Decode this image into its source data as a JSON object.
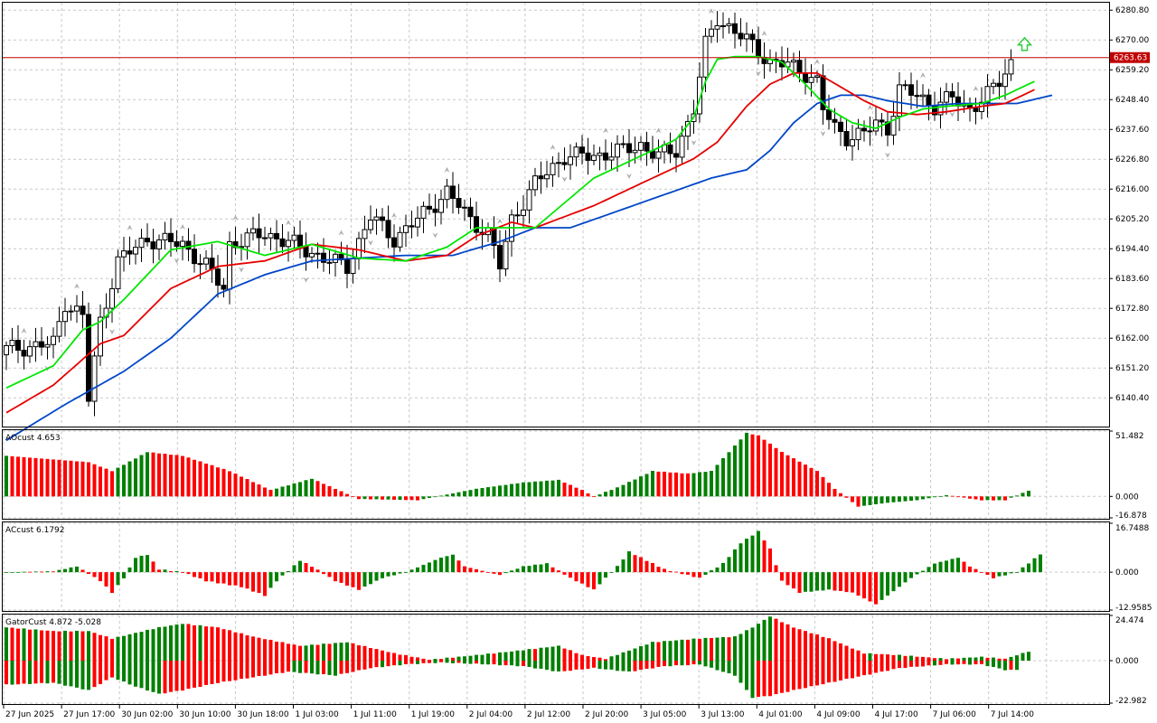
{
  "colors": {
    "bull": "#008000",
    "bear": "#ff0000",
    "ma_fast": "#00e600",
    "ma_mid": "#e60000",
    "ma_slow": "#0046c8",
    "price_line": "#c00000",
    "arrow_up": "#2ecc40",
    "grid": "#c8c8c8"
  },
  "chart_data": [
    {
      "type": "candlestick",
      "yticks": [
        "6280.80",
        "6270.00",
        "6259.20",
        "6248.40",
        "6237.60",
        "6226.80",
        "6216.00",
        "6205.20",
        "6194.40",
        "6183.60",
        "6172.80",
        "6162.00",
        "6151.20",
        "6140.40"
      ],
      "ylim": [
        6130,
        6283.5
      ],
      "current_price": "6263.63",
      "xticks": [
        "27 Jun 2025",
        "27 Jun 17:00",
        "30 Jun 02:00",
        "30 Jun 10:00",
        "30 Jun 18:00",
        "1 Jul 03:00",
        "1 Jul 11:00",
        "1 Jul 19:00",
        "2 Jul 04:00",
        "2 Jul 12:00",
        "2 Jul 20:00",
        "3 Jul 05:00",
        "3 Jul 13:00",
        "4 Jul 01:00",
        "4 Jul 09:00",
        "4 Jul 17:00",
        "7 Jul 06:00",
        "7 Jul 14:00"
      ],
      "close_anchors": [
        [
          0,
          6158
        ],
        [
          8,
          6160
        ],
        [
          10,
          6175
        ],
        [
          13,
          6170
        ],
        [
          14,
          6140
        ],
        [
          16,
          6168
        ],
        [
          19,
          6190
        ],
        [
          24,
          6198
        ],
        [
          30,
          6196
        ],
        [
          34,
          6188
        ],
        [
          37,
          6180
        ],
        [
          38,
          6196
        ],
        [
          44,
          6200
        ],
        [
          50,
          6195
        ],
        [
          55,
          6190
        ],
        [
          58,
          6188
        ],
        [
          62,
          6206
        ],
        [
          66,
          6198
        ],
        [
          70,
          6205
        ],
        [
          75,
          6215
        ],
        [
          79,
          6205
        ],
        [
          82,
          6200
        ],
        [
          84,
          6188
        ],
        [
          86,
          6205
        ],
        [
          90,
          6218
        ],
        [
          95,
          6228
        ],
        [
          100,
          6228
        ],
        [
          105,
          6230
        ],
        [
          108,
          6232
        ],
        [
          111,
          6228
        ],
        [
          114,
          6230
        ],
        [
          117,
          6245
        ],
        [
          119,
          6268
        ],
        [
          121,
          6278
        ],
        [
          124,
          6273
        ],
        [
          127,
          6268
        ],
        [
          130,
          6262
        ],
        [
          133,
          6261
        ],
        [
          136,
          6258
        ],
        [
          138,
          6255
        ],
        [
          139,
          6245
        ],
        [
          141,
          6238
        ],
        [
          143,
          6235
        ],
        [
          146,
          6236
        ],
        [
          148,
          6240
        ],
        [
          150,
          6238
        ],
        [
          152,
          6252
        ],
        [
          155,
          6250
        ],
        [
          158,
          6246
        ],
        [
          161,
          6249
        ],
        [
          164,
          6245
        ],
        [
          167,
          6250
        ],
        [
          169,
          6255
        ],
        [
          171,
          6262
        ]
      ],
      "ma_fast": [
        [
          0,
          6144
        ],
        [
          8,
          6152
        ],
        [
          13,
          6165
        ],
        [
          16,
          6168
        ],
        [
          20,
          6176
        ],
        [
          28,
          6194
        ],
        [
          36,
          6197
        ],
        [
          44,
          6192
        ],
        [
          52,
          6196
        ],
        [
          60,
          6191
        ],
        [
          68,
          6190
        ],
        [
          75,
          6195
        ],
        [
          80,
          6202
        ],
        [
          85,
          6202
        ],
        [
          90,
          6202
        ],
        [
          100,
          6220
        ],
        [
          110,
          6230
        ],
        [
          114,
          6234
        ],
        [
          117,
          6242
        ],
        [
          119,
          6255
        ],
        [
          121,
          6263
        ],
        [
          124,
          6264
        ],
        [
          128,
          6264
        ],
        [
          132,
          6262
        ],
        [
          136,
          6254
        ],
        [
          140,
          6245
        ],
        [
          144,
          6240
        ],
        [
          148,
          6238
        ],
        [
          152,
          6242
        ],
        [
          156,
          6245
        ],
        [
          160,
          6246
        ],
        [
          166,
          6247
        ],
        [
          170,
          6250
        ],
        [
          175,
          6255
        ]
      ],
      "ma_mid": [
        [
          0,
          6135
        ],
        [
          8,
          6145
        ],
        [
          16,
          6160
        ],
        [
          20,
          6163
        ],
        [
          28,
          6180
        ],
        [
          36,
          6188
        ],
        [
          44,
          6190
        ],
        [
          52,
          6196
        ],
        [
          60,
          6194
        ],
        [
          68,
          6190
        ],
        [
          75,
          6192
        ],
        [
          80,
          6199
        ],
        [
          86,
          6204
        ],
        [
          90,
          6202
        ],
        [
          100,
          6210
        ],
        [
          110,
          6220
        ],
        [
          117,
          6227
        ],
        [
          121,
          6233
        ],
        [
          126,
          6246
        ],
        [
          130,
          6254
        ],
        [
          134,
          6258
        ],
        [
          138,
          6258
        ],
        [
          142,
          6253
        ],
        [
          146,
          6248
        ],
        [
          150,
          6244
        ],
        [
          155,
          6243
        ],
        [
          160,
          6244
        ],
        [
          166,
          6246
        ],
        [
          170,
          6247
        ],
        [
          175,
          6252
        ]
      ],
      "ma_slow": [
        [
          0,
          6125
        ],
        [
          10,
          6138
        ],
        [
          20,
          6150
        ],
        [
          28,
          6162
        ],
        [
          36,
          6178
        ],
        [
          44,
          6185
        ],
        [
          52,
          6190
        ],
        [
          60,
          6191
        ],
        [
          68,
          6192
        ],
        [
          76,
          6192
        ],
        [
          84,
          6197
        ],
        [
          90,
          6202
        ],
        [
          96,
          6202
        ],
        [
          104,
          6208
        ],
        [
          112,
          6214
        ],
        [
          120,
          6220
        ],
        [
          126,
          6223
        ],
        [
          130,
          6230
        ],
        [
          134,
          6240
        ],
        [
          138,
          6247
        ],
        [
          142,
          6250
        ],
        [
          146,
          6250
        ],
        [
          150,
          6248
        ],
        [
          156,
          6246
        ],
        [
          162,
          6247
        ],
        [
          168,
          6247
        ],
        [
          172,
          6247
        ],
        [
          178,
          6250
        ]
      ]
    },
    {
      "type": "histogram",
      "label": "AOcust 4.653",
      "yticks": [
        "51.482",
        "0.000",
        "-16.878"
      ],
      "ylim": [
        -16.878,
        51.482
      ],
      "anchors": [
        [
          0,
          32
        ],
        [
          14,
          27
        ],
        [
          18,
          20
        ],
        [
          24,
          35
        ],
        [
          30,
          32
        ],
        [
          38,
          20
        ],
        [
          45,
          5
        ],
        [
          52,
          14
        ],
        [
          60,
          -2
        ],
        [
          70,
          -3
        ],
        [
          80,
          6
        ],
        [
          88,
          11
        ],
        [
          94,
          13
        ],
        [
          98,
          5
        ],
        [
          100,
          0
        ],
        [
          104,
          7
        ],
        [
          110,
          20
        ],
        [
          116,
          18
        ],
        [
          120,
          20
        ],
        [
          124,
          40
        ],
        [
          126,
          50
        ],
        [
          128,
          48
        ],
        [
          132,
          35
        ],
        [
          138,
          20
        ],
        [
          141,
          6
        ],
        [
          145,
          -8
        ],
        [
          150,
          -5
        ],
        [
          155,
          -3
        ],
        [
          160,
          1
        ],
        [
          166,
          -3
        ],
        [
          170,
          -3
        ],
        [
          174,
          4.6
        ]
      ]
    },
    {
      "type": "histogram",
      "label": "ACcust 6.1792",
      "yticks": [
        "16.7488",
        "0.000",
        "-12.9585"
      ],
      "ylim": [
        -12.9585,
        16.7488
      ],
      "anchors": [
        [
          0,
          0
        ],
        [
          8,
          0.3
        ],
        [
          12,
          2
        ],
        [
          16,
          -3
        ],
        [
          18,
          -7
        ],
        [
          20,
          -2
        ],
        [
          22,
          5
        ],
        [
          24,
          6
        ],
        [
          26,
          1
        ],
        [
          30,
          0
        ],
        [
          34,
          -3
        ],
        [
          40,
          -5
        ],
        [
          44,
          -8
        ],
        [
          46,
          -3
        ],
        [
          50,
          4
        ],
        [
          52,
          2
        ],
        [
          56,
          -3
        ],
        [
          60,
          -6
        ],
        [
          64,
          -2
        ],
        [
          68,
          0
        ],
        [
          74,
          5
        ],
        [
          76,
          6
        ],
        [
          78,
          2
        ],
        [
          84,
          -1
        ],
        [
          88,
          2
        ],
        [
          92,
          3
        ],
        [
          96,
          -2
        ],
        [
          100,
          -6
        ],
        [
          104,
          2
        ],
        [
          106,
          7
        ],
        [
          108,
          5
        ],
        [
          112,
          1
        ],
        [
          118,
          -2
        ],
        [
          122,
          3
        ],
        [
          125,
          10
        ],
        [
          128,
          14
        ],
        [
          130,
          8
        ],
        [
          132,
          -3
        ],
        [
          135,
          -7
        ],
        [
          140,
          -6
        ],
        [
          144,
          -7
        ],
        [
          148,
          -11
        ],
        [
          150,
          -8
        ],
        [
          154,
          -2
        ],
        [
          158,
          3
        ],
        [
          162,
          5
        ],
        [
          164,
          2
        ],
        [
          168,
          -2
        ],
        [
          172,
          0
        ],
        [
          176,
          6.2
        ]
      ]
    },
    {
      "type": "gator",
      "label": "GatorCust 4.872 -5.028",
      "yticks": [
        "24.474",
        "0.000",
        "-22.982"
      ],
      "ylim": [
        -22.982,
        24.474
      ],
      "upper_anchors": [
        [
          0,
          18
        ],
        [
          8,
          16
        ],
        [
          14,
          16
        ],
        [
          18,
          12
        ],
        [
          22,
          15
        ],
        [
          26,
          18
        ],
        [
          30,
          20
        ],
        [
          36,
          18
        ],
        [
          42,
          13
        ],
        [
          50,
          8
        ],
        [
          58,
          10
        ],
        [
          66,
          4
        ],
        [
          72,
          0.5
        ],
        [
          80,
          3
        ],
        [
          86,
          5
        ],
        [
          94,
          8
        ],
        [
          98,
          3
        ],
        [
          102,
          1
        ],
        [
          110,
          10
        ],
        [
          118,
          12
        ],
        [
          124,
          13
        ],
        [
          127,
          18
        ],
        [
          130,
          24
        ],
        [
          134,
          18
        ],
        [
          140,
          12
        ],
        [
          146,
          4
        ],
        [
          152,
          3
        ],
        [
          160,
          1
        ],
        [
          166,
          2
        ],
        [
          170,
          1
        ],
        [
          174,
          5
        ]
      ],
      "lower_anchors": [
        [
          0,
          -13
        ],
        [
          8,
          -12
        ],
        [
          14,
          -16
        ],
        [
          18,
          -9
        ],
        [
          22,
          -14
        ],
        [
          26,
          -18
        ],
        [
          30,
          -16
        ],
        [
          36,
          -12
        ],
        [
          42,
          -9
        ],
        [
          48,
          -6
        ],
        [
          56,
          -8
        ],
        [
          62,
          -4
        ],
        [
          68,
          -2
        ],
        [
          74,
          -1
        ],
        [
          82,
          -2
        ],
        [
          88,
          -3
        ],
        [
          94,
          -6
        ],
        [
          100,
          -4
        ],
        [
          106,
          -6
        ],
        [
          112,
          -3
        ],
        [
          118,
          -2
        ],
        [
          124,
          -8
        ],
        [
          127,
          -20
        ],
        [
          130,
          -19
        ],
        [
          134,
          -16
        ],
        [
          140,
          -12
        ],
        [
          146,
          -8
        ],
        [
          152,
          -4
        ],
        [
          160,
          -2
        ],
        [
          166,
          -2
        ],
        [
          170,
          -5
        ],
        [
          172,
          -5.03
        ]
      ]
    }
  ]
}
